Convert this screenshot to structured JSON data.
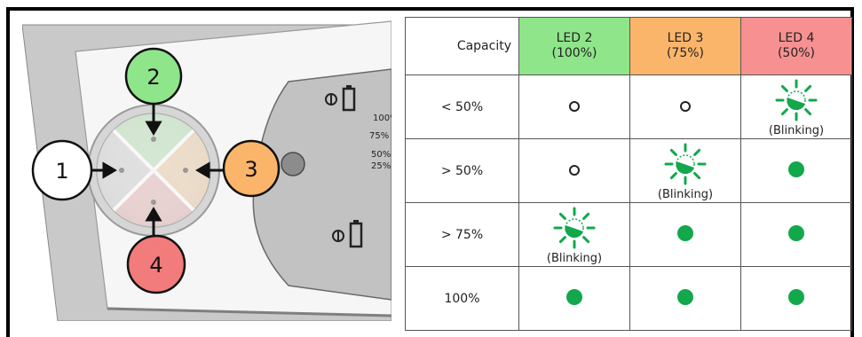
{
  "diagram": {
    "callouts": [
      "1",
      "2",
      "3",
      "4"
    ],
    "colors": {
      "callout_1": "#ffffff",
      "callout_2": "#8fe58a",
      "callout_3": "#fbb56a",
      "callout_4": "#f27b7b",
      "led_on": "#12a84b"
    },
    "bracket_percent_labels": [
      "100%",
      "75%",
      "50%",
      "25%"
    ]
  },
  "table": {
    "header": {
      "capacity": "Capacity",
      "columns": [
        {
          "name": "LED 2",
          "sub": "(100%)",
          "color": "#8fe58a"
        },
        {
          "name": "LED 3",
          "sub": "(75%)",
          "color": "#fbb56a"
        },
        {
          "name": "LED 4",
          "sub": "(50%)",
          "color": "#f79191"
        }
      ]
    },
    "blinking_label": "(Blinking)",
    "rows": [
      {
        "label": "< 50%",
        "states": [
          "off",
          "off",
          "blinking"
        ]
      },
      {
        "label": "> 50%",
        "states": [
          "off",
          "blinking",
          "on"
        ]
      },
      {
        "label": "> 75%",
        "states": [
          "blinking",
          "on",
          "on"
        ]
      },
      {
        "label": "100%",
        "states": [
          "on",
          "on",
          "on"
        ]
      }
    ]
  }
}
